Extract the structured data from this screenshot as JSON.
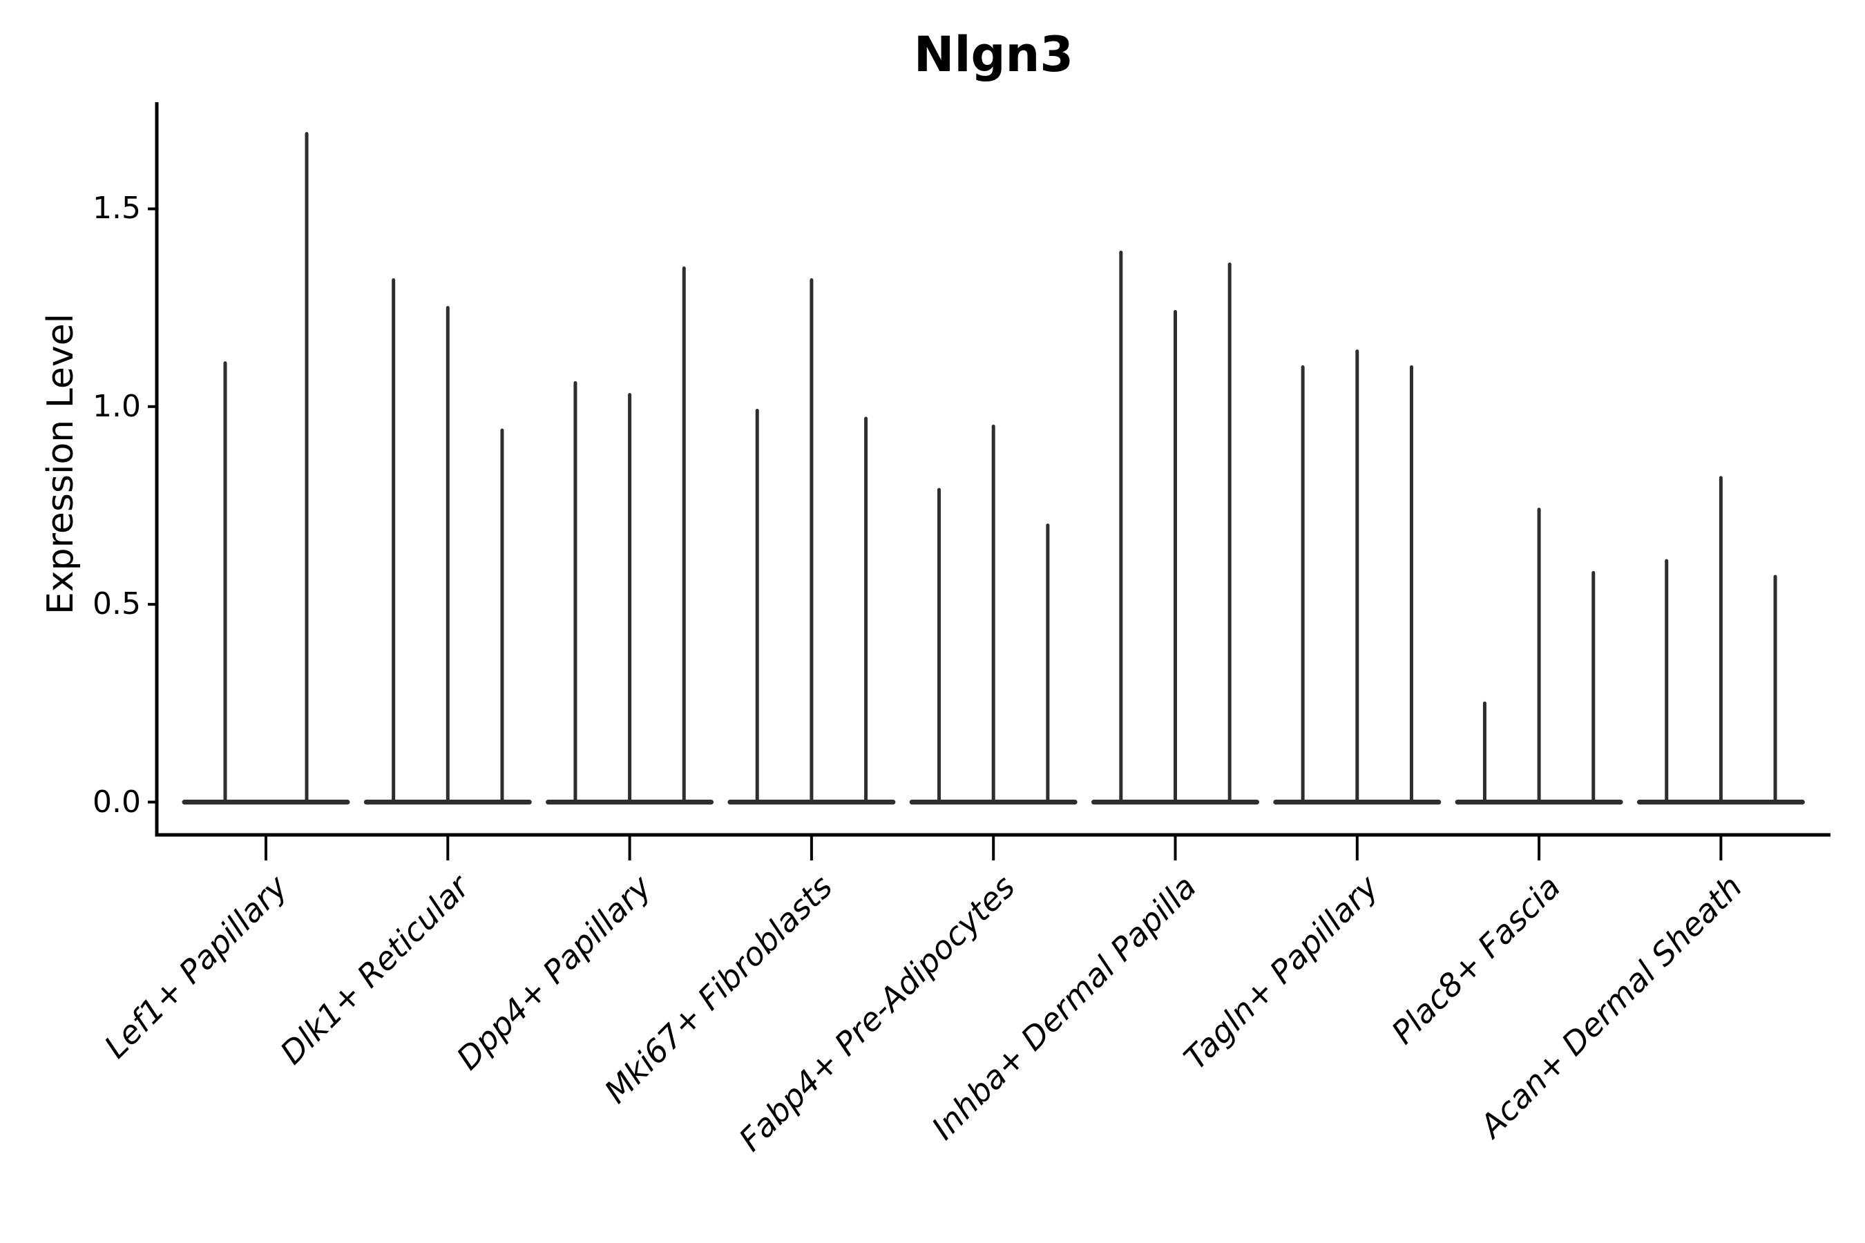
{
  "title": "Nlgn3",
  "y_axis": {
    "label": "Expression Level",
    "tick_labels": [
      "0.0",
      "0.5",
      "1.0",
      "1.5"
    ]
  },
  "chart_data": {
    "type": "violin",
    "title": "Nlgn3",
    "ylabel": "Expression Level",
    "xlabel": "",
    "yticks": [
      0.0,
      0.5,
      1.0,
      1.5
    ],
    "ylim": [
      -0.08,
      1.77
    ],
    "grid": false,
    "legend": "none",
    "categories": [
      "Lef1+ Papillary",
      "Dlk1+ Reticular",
      "Dpp4+ Papillary",
      "Mki67+ Fibroblasts",
      "Fabp4+ Pre-Adipocytes",
      "Inhba+ Dermal Papilla",
      "Tagln+ Papillary",
      "Plac8+ Fascia",
      "Acan+ Dermal Sheath"
    ],
    "groups": [
      {
        "category": "Lef1+ Papillary",
        "violin_max": [
          1.11,
          1.69
        ]
      },
      {
        "category": "Dlk1+ Reticular",
        "violin_max": [
          1.32,
          1.25,
          0.94
        ]
      },
      {
        "category": "Dpp4+ Papillary",
        "violin_max": [
          1.06,
          1.03,
          1.35
        ]
      },
      {
        "category": "Mki67+ Fibroblasts",
        "violin_max": [
          0.99,
          1.32,
          0.97
        ]
      },
      {
        "category": "Fabp4+ Pre-Adipocytes",
        "violin_max": [
          0.79,
          0.95,
          0.7
        ]
      },
      {
        "category": "Inhba+ Dermal Papilla",
        "violin_max": [
          1.39,
          1.24,
          1.36
        ]
      },
      {
        "category": "Tagln+ Papillary",
        "violin_max": [
          1.1,
          1.14,
          1.1
        ]
      },
      {
        "category": "Plac8+ Fascia",
        "violin_max": [
          0.25,
          0.74,
          0.58
        ]
      },
      {
        "category": "Acan+ Dermal Sheath",
        "violin_max": [
          0.61,
          0.82,
          0.57
        ]
      }
    ],
    "colors": {
      "violin": "#2e2e2e",
      "axis": "#000000",
      "text": "#000000",
      "background": "#ffffff"
    }
  }
}
